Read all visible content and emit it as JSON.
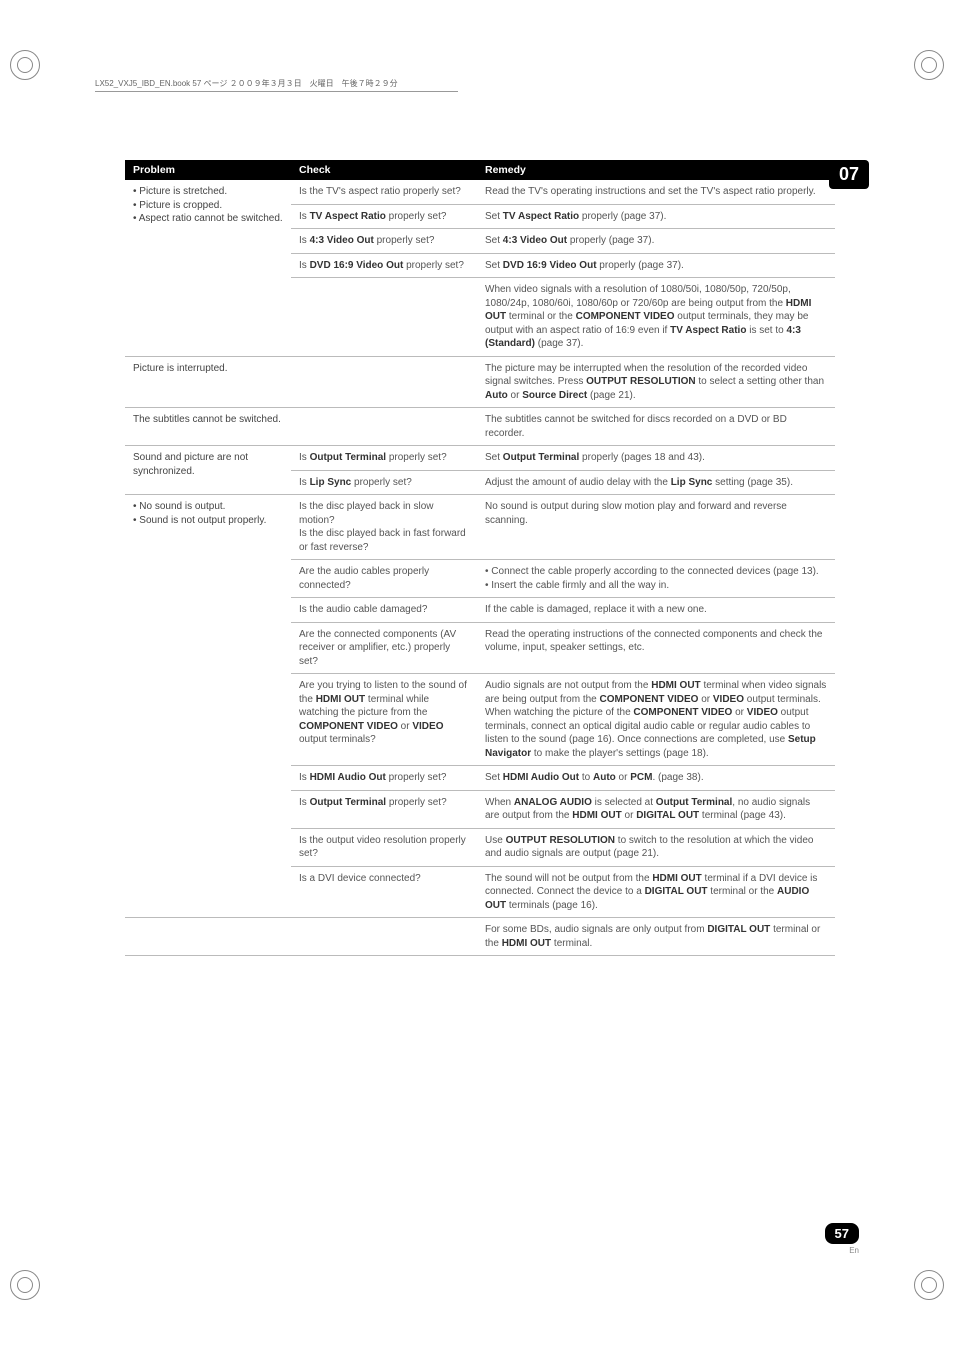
{
  "header_text": "LX52_VXJ5_IBD_EN.book  57 ページ  ２００９年３月３日　火曜日　午後７時２９分",
  "chapter": "07",
  "page_number": "57",
  "page_lang": "En",
  "headers": {
    "c1": "Problem",
    "c2": "Check",
    "c3": "Remedy"
  },
  "rows": [
    {
      "problem_html": "• Picture is stretched.<br>• Picture is cropped.<br>• Aspect ratio cannot be switched.",
      "problem_rowspan": 5,
      "check_html": "Is the TV's aspect ratio properly set?",
      "remedy_html": "Read the TV's operating instructions and set the TV's aspect ratio properly."
    },
    {
      "check_html": "Is <span class='b'>TV Aspect Ratio</span> properly set?",
      "remedy_html": "Set <span class='b'>TV Aspect Ratio</span> properly (page 37)."
    },
    {
      "check_html": "Is <span class='b'>4:3 Video Out</span> properly set?",
      "remedy_html": "Set <span class='b'>4:3 Video Out</span> properly (page 37)."
    },
    {
      "check_html": "Is <span class='b'>DVD 16:9 Video Out</span> properly set?",
      "remedy_html": "Set <span class='b'>DVD 16:9 Video Out</span> properly (page 37)."
    },
    {
      "check_html": "",
      "remedy_html": "When video signals with a resolution of 1080/50i, 1080/50p, 720/50p, 1080/24p, 1080/60i, 1080/60p or 720/60p are being output from the <span class='b'>HDMI OUT</span> terminal or the <span class='b'>COMPONENT VIDEO</span> output terminals, they may be output with an aspect ratio of 16:9 even if <span class='b'>TV Aspect Ratio</span> is set to <span class='b'>4:3 (Standard)</span> (page 37)."
    },
    {
      "problem_html": "Picture is interrupted.",
      "check_html": "",
      "remedy_html": "The picture may be interrupted when the resolution of the recorded video signal switches. Press <span class='b'>OUTPUT RESOLUTION</span> to select a setting other than <span class='b'>Auto</span> or <span class='b'>Source Direct</span> (page 21)."
    },
    {
      "problem_html": "The subtitles cannot be switched.",
      "check_html": "",
      "remedy_html": "The subtitles cannot be switched for discs recorded on a DVD or BD recorder."
    },
    {
      "problem_html": "Sound and picture are not synchronized.",
      "problem_rowspan": 2,
      "check_html": "Is <span class='b'>Output Terminal</span> properly set?",
      "remedy_html": "Set <span class='b'>Output Terminal</span> properly (pages 18 and 43)."
    },
    {
      "check_html": "Is <span class='b'>Lip Sync</span> properly set?",
      "remedy_html": "Adjust the amount of audio delay with the <span class='b'>Lip Sync</span> setting (page 35)."
    },
    {
      "problem_html": "• No sound is output.<br>• Sound is not output properly.",
      "problem_rowspan": 9,
      "check_html": "Is the disc played back in slow motion?<br>Is the disc played back in fast forward or fast reverse?",
      "remedy_html": "No sound is output during slow motion play and forward and reverse scanning."
    },
    {
      "check_html": "Are the audio cables properly connected?",
      "remedy_html": "• Connect the cable properly according to the connected devices (page 13).<br>• Insert the cable firmly and all the way in."
    },
    {
      "check_html": "Is the audio cable damaged?",
      "remedy_html": "If the cable is damaged, replace it with a new one."
    },
    {
      "check_html": "Are the connected components (AV receiver or amplifier, etc.) properly set?",
      "remedy_html": "Read the operating instructions of the connected components and check the volume, input, speaker settings, etc."
    },
    {
      "check_html": "Are you trying to listen to the sound of the <span class='b'>HDMI OUT</span> terminal while watching the picture from the <span class='b'>COMPONENT VIDEO</span> or <span class='b'>VIDEO</span> output terminals?",
      "remedy_html": "Audio signals are not output from the <span class='b'>HDMI OUT</span> terminal when video signals are being output from the <span class='b'>COMPONENT VIDEO</span> or <span class='b'>VIDEO</span> output terminals. When watching the picture of the <span class='b'>COMPONENT VIDEO</span> or <span class='b'>VIDEO</span> output terminals, connect an optical digital audio cable or regular audio cables to listen to the sound (page 16). Once connections are completed, use <span class='b'>Setup Navigator</span> to make the player's settings (page 18)."
    },
    {
      "check_html": "Is <span class='b'>HDMI Audio Out</span> properly set?",
      "remedy_html": "Set <span class='b'>HDMI Audio Out</span> to <span class='b'>Auto</span> or <span class='b'>PCM</span>. (page 38)."
    },
    {
      "check_html": "Is <span class='b'>Output Terminal</span> properly set?",
      "remedy_html": "When <span class='b'>ANALOG AUDIO</span> is selected at <span class='b'>Output Terminal</span>, no audio signals are output from the <span class='b'>HDMI OUT</span> or <span class='b'>DIGITAL OUT</span> terminal (page 43)."
    },
    {
      "check_html": "Is the output video resolution properly set?",
      "remedy_html": "Use <span class='b'>OUTPUT RESOLUTION</span> to switch to the resolution at which the video and audio signals are output (page 21)."
    },
    {
      "check_html": "Is a DVI device connected?",
      "remedy_html": "The sound will not be output from the <span class='b'>HDMI OUT</span> terminal if a DVI device is connected. Connect the device to a <span class='b'>DIGITAL OUT</span> terminal or the <span class='b'>AUDIO OUT</span> terminals (page 16)."
    },
    {
      "problem_html": "",
      "check_html": "",
      "remedy_html": "For some BDs, audio signals are only output from <span class='b'>DIGITAL OUT</span> terminal or the <span class='b'>HDMI OUT</span> terminal."
    }
  ]
}
